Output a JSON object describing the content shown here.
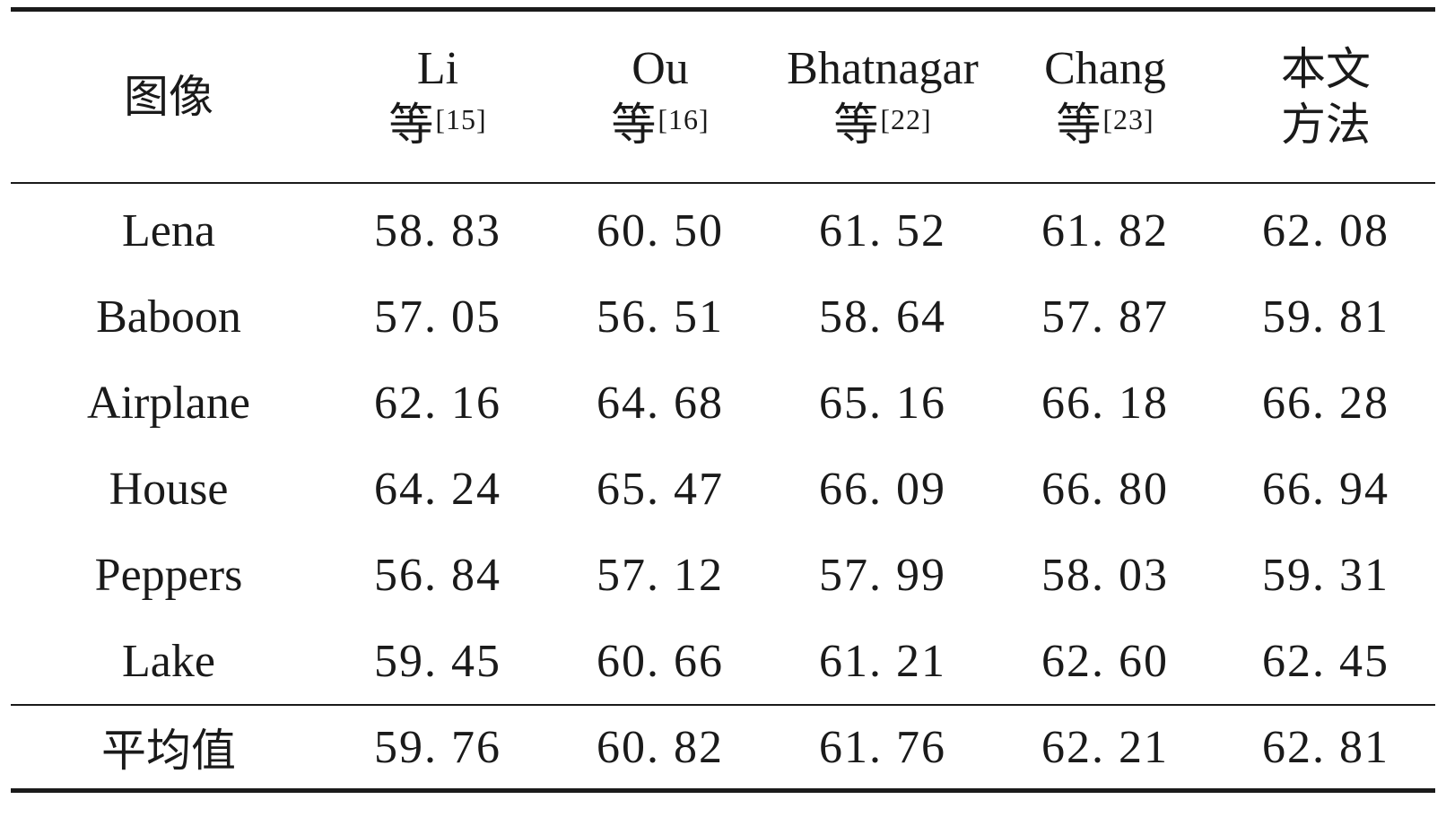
{
  "table": {
    "headers": [
      {
        "line1": "图像",
        "line2": "",
        "ref": ""
      },
      {
        "line1": "Li",
        "line2": "等",
        "ref": "[15]"
      },
      {
        "line1": "Ou",
        "line2": "等",
        "ref": "[16]"
      },
      {
        "line1": "Bhatnagar",
        "line2": "等",
        "ref": "[22]"
      },
      {
        "line1": "Chang",
        "line2": "等",
        "ref": "[23]"
      },
      {
        "line1": "本文",
        "line2": "方法",
        "ref": ""
      }
    ],
    "rows": [
      {
        "image": "Lena",
        "values": [
          "58. 83",
          "60. 50",
          "61. 52",
          "61. 82",
          "62. 08"
        ]
      },
      {
        "image": "Baboon",
        "values": [
          "57. 05",
          "56. 51",
          "58. 64",
          "57. 87",
          "59. 81"
        ]
      },
      {
        "image": "Airplane",
        "values": [
          "62. 16",
          "64. 68",
          "65. 16",
          "66. 18",
          "66. 28"
        ]
      },
      {
        "image": "House",
        "values": [
          "64. 24",
          "65. 47",
          "66. 09",
          "66. 80",
          "66. 94"
        ]
      },
      {
        "image": "Peppers",
        "values": [
          "56. 84",
          "57. 12",
          "57. 99",
          "58. 03",
          "59. 31"
        ]
      },
      {
        "image": "Lake",
        "values": [
          "59. 45",
          "60. 66",
          "61. 21",
          "62. 60",
          "62. 45"
        ]
      }
    ],
    "footer": {
      "label": "平均值",
      "values": [
        "59. 76",
        "60. 82",
        "61. 76",
        "62. 21",
        "62. 81"
      ]
    }
  }
}
